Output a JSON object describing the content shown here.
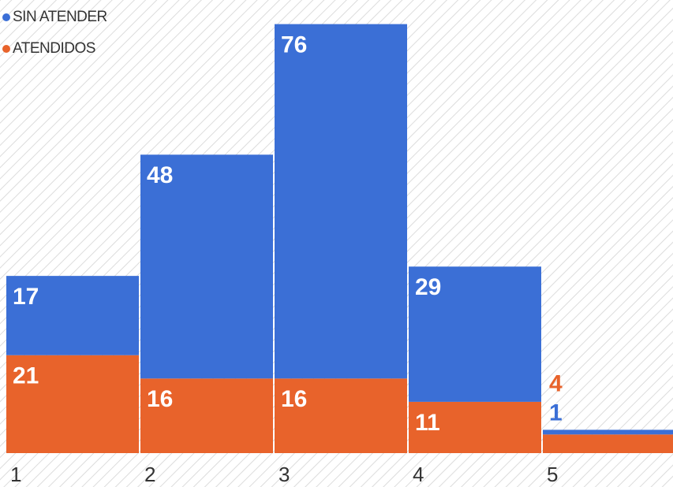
{
  "chart_data": {
    "type": "stacked_bar",
    "categories": [
      "1",
      "2",
      "3",
      "4",
      "5"
    ],
    "series": [
      {
        "name": "SIN ATENDER",
        "color": "#3b6fd6",
        "values": [
          17,
          48,
          76,
          29,
          1
        ]
      },
      {
        "name": "ATENDIDOS",
        "color": "#e8632b",
        "values": [
          21,
          16,
          16,
          11,
          4
        ]
      }
    ],
    "ylim": [
      0,
      97
    ]
  }
}
